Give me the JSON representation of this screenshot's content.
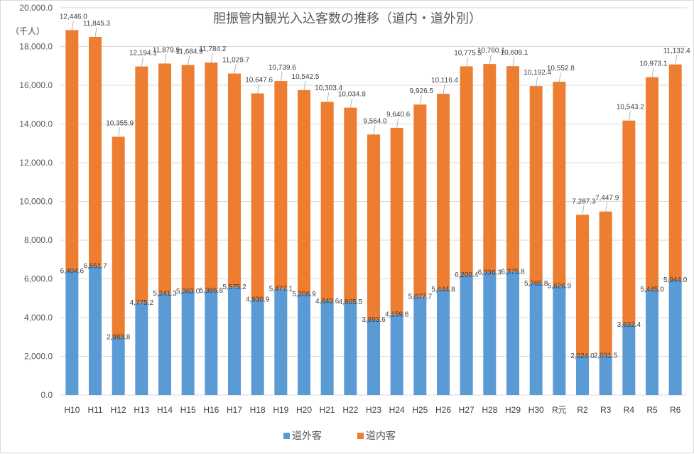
{
  "colors": {
    "outside": "#5b9bd5",
    "inside": "#ed7d31",
    "grid": "#d9d9d9"
  },
  "chart_data": {
    "type": "bar",
    "stacked": true,
    "title": "胆振管内観光入込客数の推移（道内・道外別）",
    "ylabel": "（千人）",
    "xlabel": "",
    "ylim": [
      0,
      20000
    ],
    "yticks": [
      "0.0",
      "2,000.0",
      "4,000.0",
      "6,000.0",
      "8,000.0",
      "10,000.0",
      "12,000.0",
      "14,000.0",
      "16,000.0",
      "18,000.0",
      "20,000.0"
    ],
    "categories": [
      "H10",
      "H11",
      "H12",
      "H13",
      "H14",
      "H15",
      "H16",
      "H17",
      "H18",
      "H19",
      "H20",
      "H21",
      "H22",
      "H23",
      "H24",
      "H25",
      "H26",
      "H27",
      "H28",
      "H29",
      "H30",
      "R元",
      "R2",
      "R3",
      "R4",
      "R5",
      "R6"
    ],
    "series": [
      {
        "name": "道外客",
        "values": [
          6404.6,
          6651.7,
          2983.8,
          4775.2,
          5241.3,
          5363.0,
          5386.8,
          5575.2,
          4930.9,
          5477.1,
          5206.9,
          4843.6,
          4805.5,
          3893.6,
          4159.6,
          5077.7,
          5444.8,
          6200.4,
          6336.3,
          6375.8,
          5765.8,
          5626.9,
          2024.0,
          2031.5,
          3632.4,
          5445.0,
          5944.0
        ],
        "labels": [
          "6,404.6",
          "6,651.7",
          "2,983.8",
          "4,775.2",
          "5,241.3",
          "5,363.0",
          "5,386.8",
          "5,575.2",
          "4,930.9",
          "5,477.1",
          "5,206.9",
          "4,843.6",
          "4,805.5",
          "3,893.6",
          "4,159.6",
          "5,077.7",
          "5,444.8",
          "6,200.4",
          "6,336.3",
          "6,375.8",
          "5,765.8",
          "5,626.9",
          "2,024.0",
          "2,031.5",
          "3,632.4",
          "5,445.0",
          "5,944.0"
        ]
      },
      {
        "name": "道内客",
        "values": [
          12446.0,
          11845.3,
          10355.9,
          12194.1,
          11879.9,
          11684.9,
          11784.2,
          11029.7,
          10647.6,
          10739.6,
          10542.5,
          10303.4,
          10034.9,
          9564.0,
          9640.6,
          9926.5,
          10116.4,
          10775.5,
          10760.1,
          10609.1,
          10192.4,
          10552.8,
          7287.3,
          7447.9,
          10543.2,
          10973.1,
          11132.4
        ],
        "labels": [
          "12,446.0",
          "11,845.3",
          "10,355.9",
          "12,194.1",
          "11,879.9",
          "11,684.9",
          "11,784.2",
          "11,029.7",
          "10,647.6",
          "10,739.6",
          "10,542.5",
          "10,303.4",
          "10,034.9",
          "9,564.0",
          "9,640.6",
          "9,926.5",
          "10,116.4",
          "10,775.5",
          "10,760.1",
          "10,609.1",
          "10,192.4",
          "10,552.8",
          "7,287.3",
          "7,447.9",
          "10,543.2",
          "10,973.1",
          "11,132.4"
        ]
      }
    ],
    "legend_position": "bottom"
  }
}
